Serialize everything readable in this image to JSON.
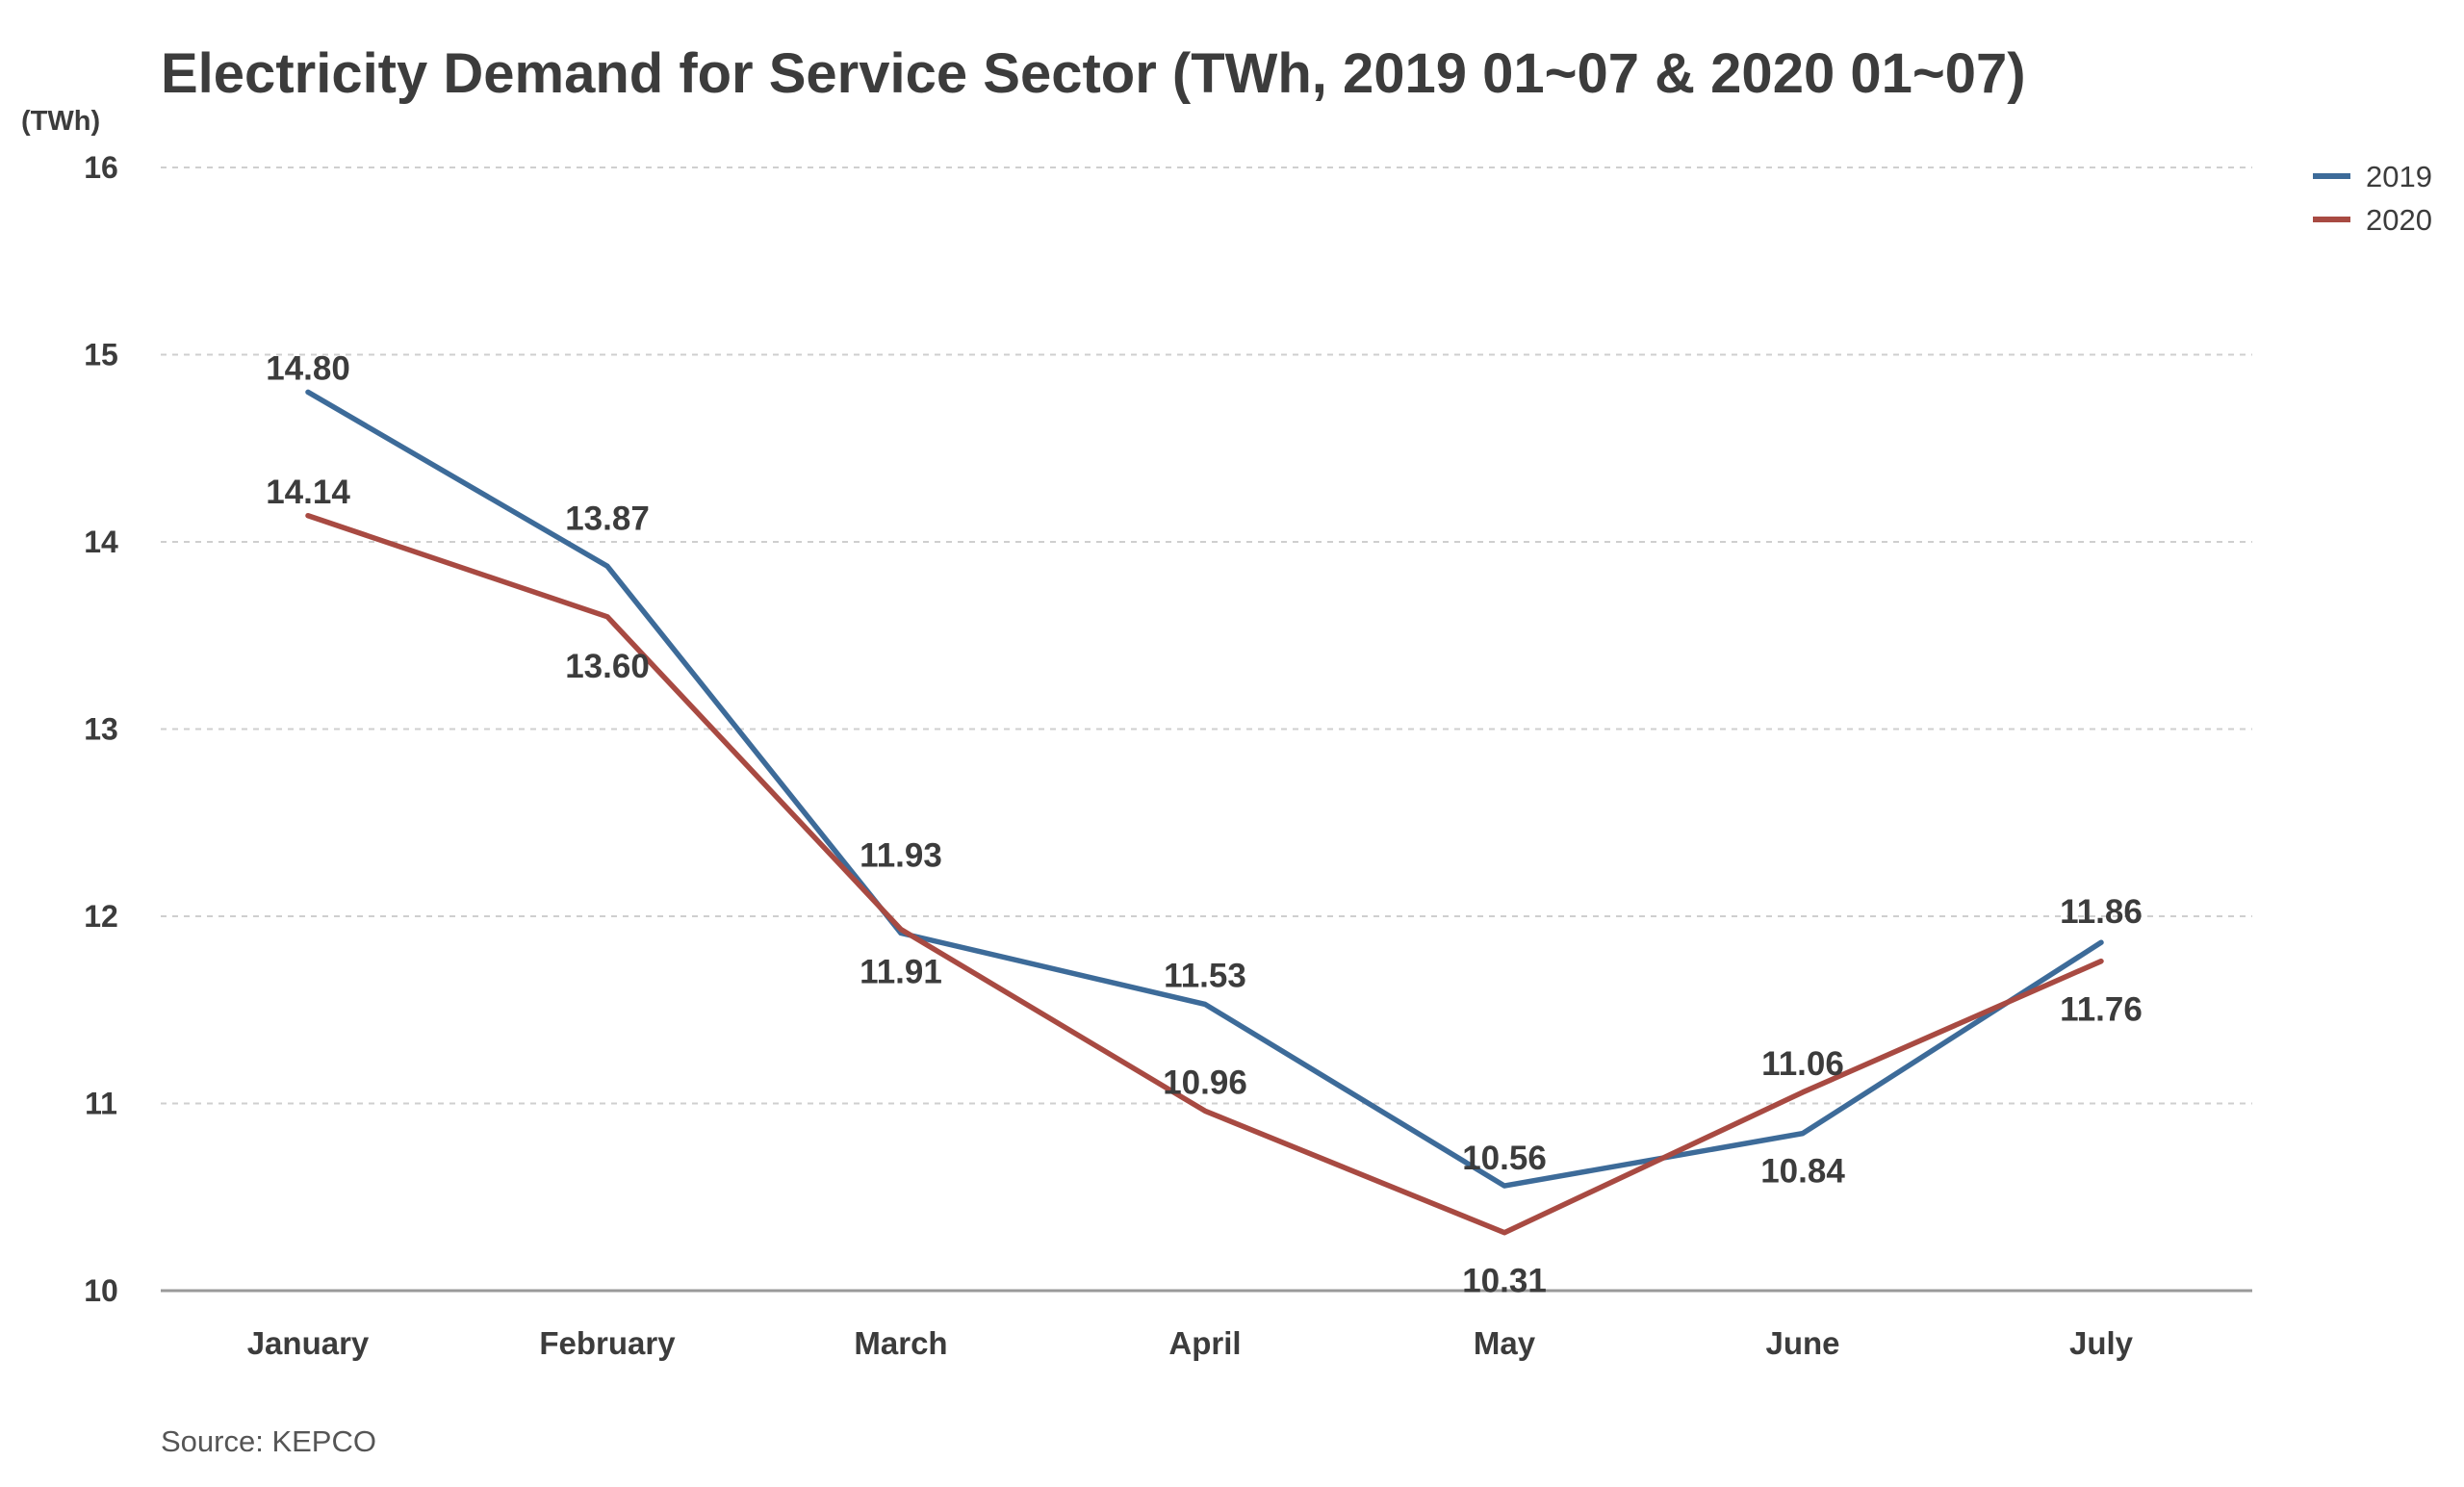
{
  "chart_data": {
    "type": "line",
    "title": "Electricity Demand for Service Sector (TWh, 2019 01~07 & 2020 01~07)",
    "ylabel": "(TWh)",
    "xlabel": "",
    "categories": [
      "January",
      "February",
      "March",
      "April",
      "May",
      "June",
      "July"
    ],
    "ylim": [
      10,
      16
    ],
    "yticks": [
      10,
      11,
      12,
      13,
      14,
      15,
      16
    ],
    "grid": true,
    "legend_position": "top-right",
    "series": [
      {
        "name": "2019",
        "color": "#3d6b99",
        "values": [
          14.8,
          13.87,
          11.91,
          11.53,
          10.56,
          10.84,
          11.86
        ],
        "labels": [
          "14.80",
          "13.87",
          "11.91",
          "11.53",
          "10.56",
          "10.84",
          "11.86"
        ]
      },
      {
        "name": "2020",
        "color": "#a84a42",
        "values": [
          14.14,
          13.6,
          11.93,
          10.96,
          10.31,
          11.06,
          11.76
        ],
        "labels": [
          "14.14",
          "13.60",
          "11.93",
          "10.96",
          "10.31",
          "11.06",
          "11.76"
        ]
      }
    ],
    "source": "Source: KEPCO"
  }
}
